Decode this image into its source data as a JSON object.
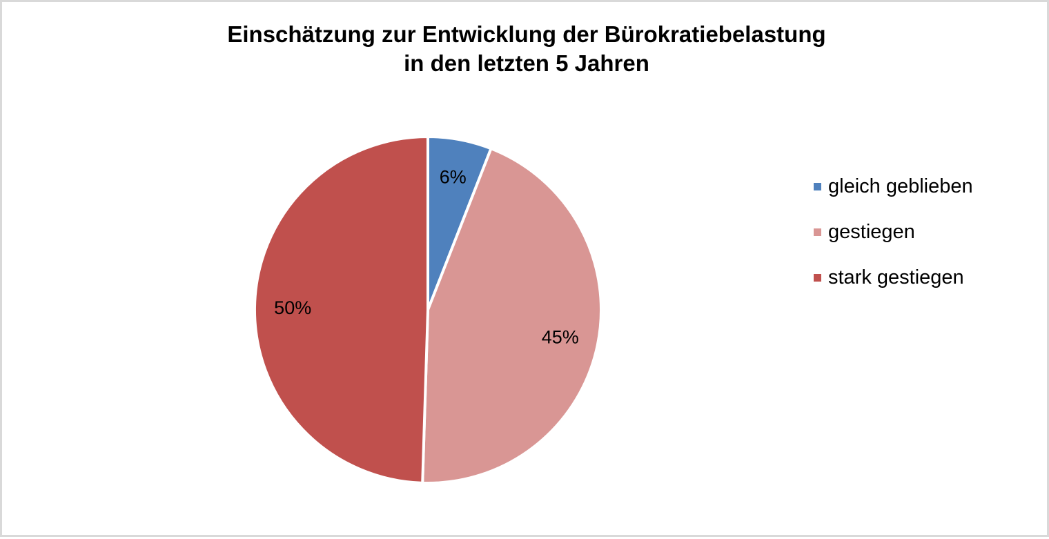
{
  "chart_data": {
    "type": "pie",
    "title_lines": [
      "Einschätzung zur Entwicklung der Bürokratiebelastung",
      "in den letzten 5 Jahren"
    ],
    "slices": [
      {
        "label": "gleich geblieben",
        "value": 6,
        "display": "6%",
        "color": "#4f81bd"
      },
      {
        "label": "gestiegen",
        "value": 45,
        "display": "45%",
        "color": "#d99694"
      },
      {
        "label": "stark gestiegen",
        "value": 50,
        "display": "50%",
        "color": "#c0504d"
      }
    ],
    "legend_position": "right"
  }
}
